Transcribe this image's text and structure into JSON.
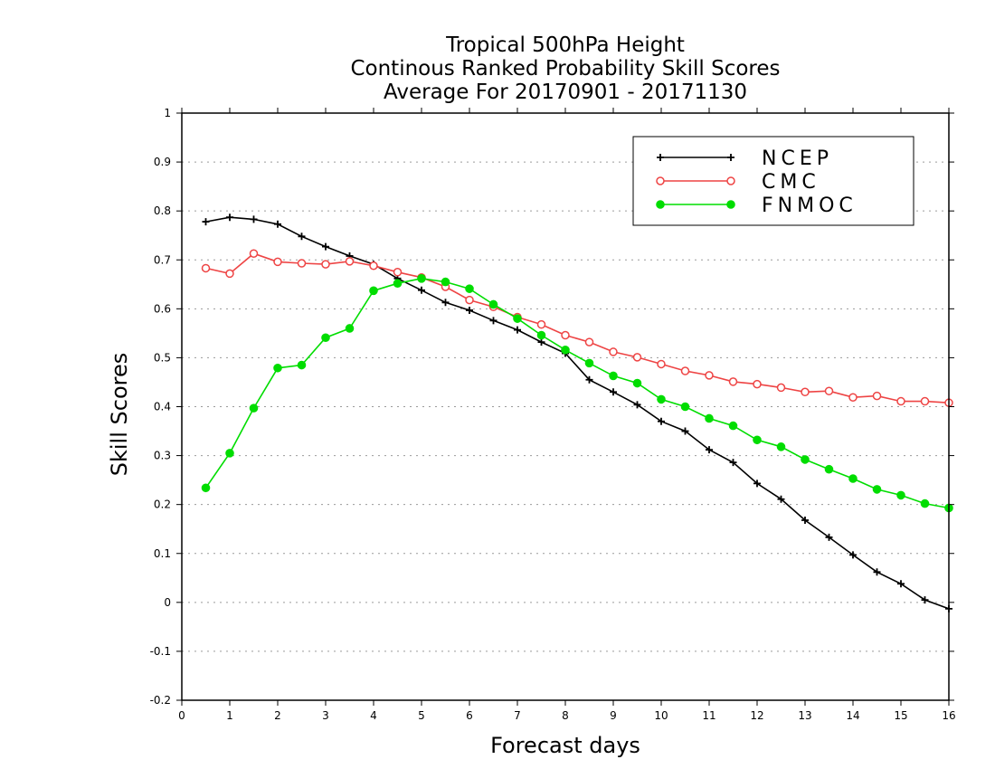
{
  "chart_data": {
    "type": "line",
    "title_lines": [
      "Tropical 500hPa Height",
      "Continous Ranked Probability Skill Scores",
      "Average For 20170901 - 20171130"
    ],
    "xlabel": "Forecast days",
    "ylabel": "Skill Scores",
    "xlim": [
      0,
      16
    ],
    "ylim": [
      -0.2,
      1
    ],
    "xticks": [
      0,
      1,
      2,
      3,
      4,
      5,
      6,
      7,
      8,
      9,
      10,
      11,
      12,
      13,
      14,
      15,
      16
    ],
    "yticks": [
      -0.2,
      -0.1,
      0,
      0.1,
      0.2,
      0.3,
      0.4,
      0.5,
      0.6,
      0.7,
      0.8,
      0.9,
      1
    ],
    "ytick_labels": [
      "-0.2",
      "-0.1",
      "0",
      "0.1",
      "0.2",
      "0.3",
      "0.4",
      "0.5",
      "0.6",
      "0.7",
      "0.8",
      "0.9",
      "1"
    ],
    "grid": "horizontal dotted",
    "legend_position": "top-right",
    "x": [
      0.5,
      1,
      1.5,
      2,
      2.5,
      3,
      3.5,
      4,
      4.5,
      5,
      5.5,
      6,
      6.5,
      7,
      7.5,
      8,
      8.5,
      9,
      9.5,
      10,
      10.5,
      11,
      11.5,
      12,
      12.5,
      13,
      13.5,
      14,
      14.5,
      15,
      15.5,
      16
    ],
    "series": [
      {
        "name": "NCEP",
        "color": "#000000",
        "marker": "plus",
        "values": [
          0.778,
          0.787,
          0.783,
          0.773,
          0.748,
          0.727,
          0.708,
          0.691,
          0.662,
          0.638,
          0.613,
          0.597,
          0.576,
          0.557,
          0.532,
          0.509,
          0.455,
          0.43,
          0.404,
          0.37,
          0.35,
          0.312,
          0.286,
          0.243,
          0.211,
          0.168,
          0.133,
          0.097,
          0.062,
          0.038,
          0.005,
          -0.013
        ]
      },
      {
        "name": "CMC",
        "color": "#ee4444",
        "marker": "open-circle",
        "values": [
          0.683,
          0.672,
          0.713,
          0.696,
          0.693,
          0.691,
          0.697,
          0.688,
          0.675,
          0.664,
          0.645,
          0.618,
          0.604,
          0.583,
          0.568,
          0.546,
          0.532,
          0.512,
          0.501,
          0.487,
          0.473,
          0.464,
          0.451,
          0.446,
          0.439,
          0.43,
          0.432,
          0.419,
          0.422,
          0.411,
          0.411,
          0.408
        ]
      },
      {
        "name": "FNMOC",
        "color": "#00dd00",
        "marker": "filled-circle",
        "values": [
          0.234,
          0.305,
          0.397,
          0.479,
          0.485,
          0.541,
          0.56,
          0.637,
          0.652,
          0.662,
          0.655,
          0.641,
          0.609,
          0.58,
          0.546,
          0.516,
          0.489,
          0.463,
          0.448,
          0.415,
          0.4,
          0.376,
          0.361,
          0.332,
          0.318,
          0.292,
          0.272,
          0.253,
          0.231,
          0.219,
          0.202,
          0.193
        ]
      }
    ]
  }
}
